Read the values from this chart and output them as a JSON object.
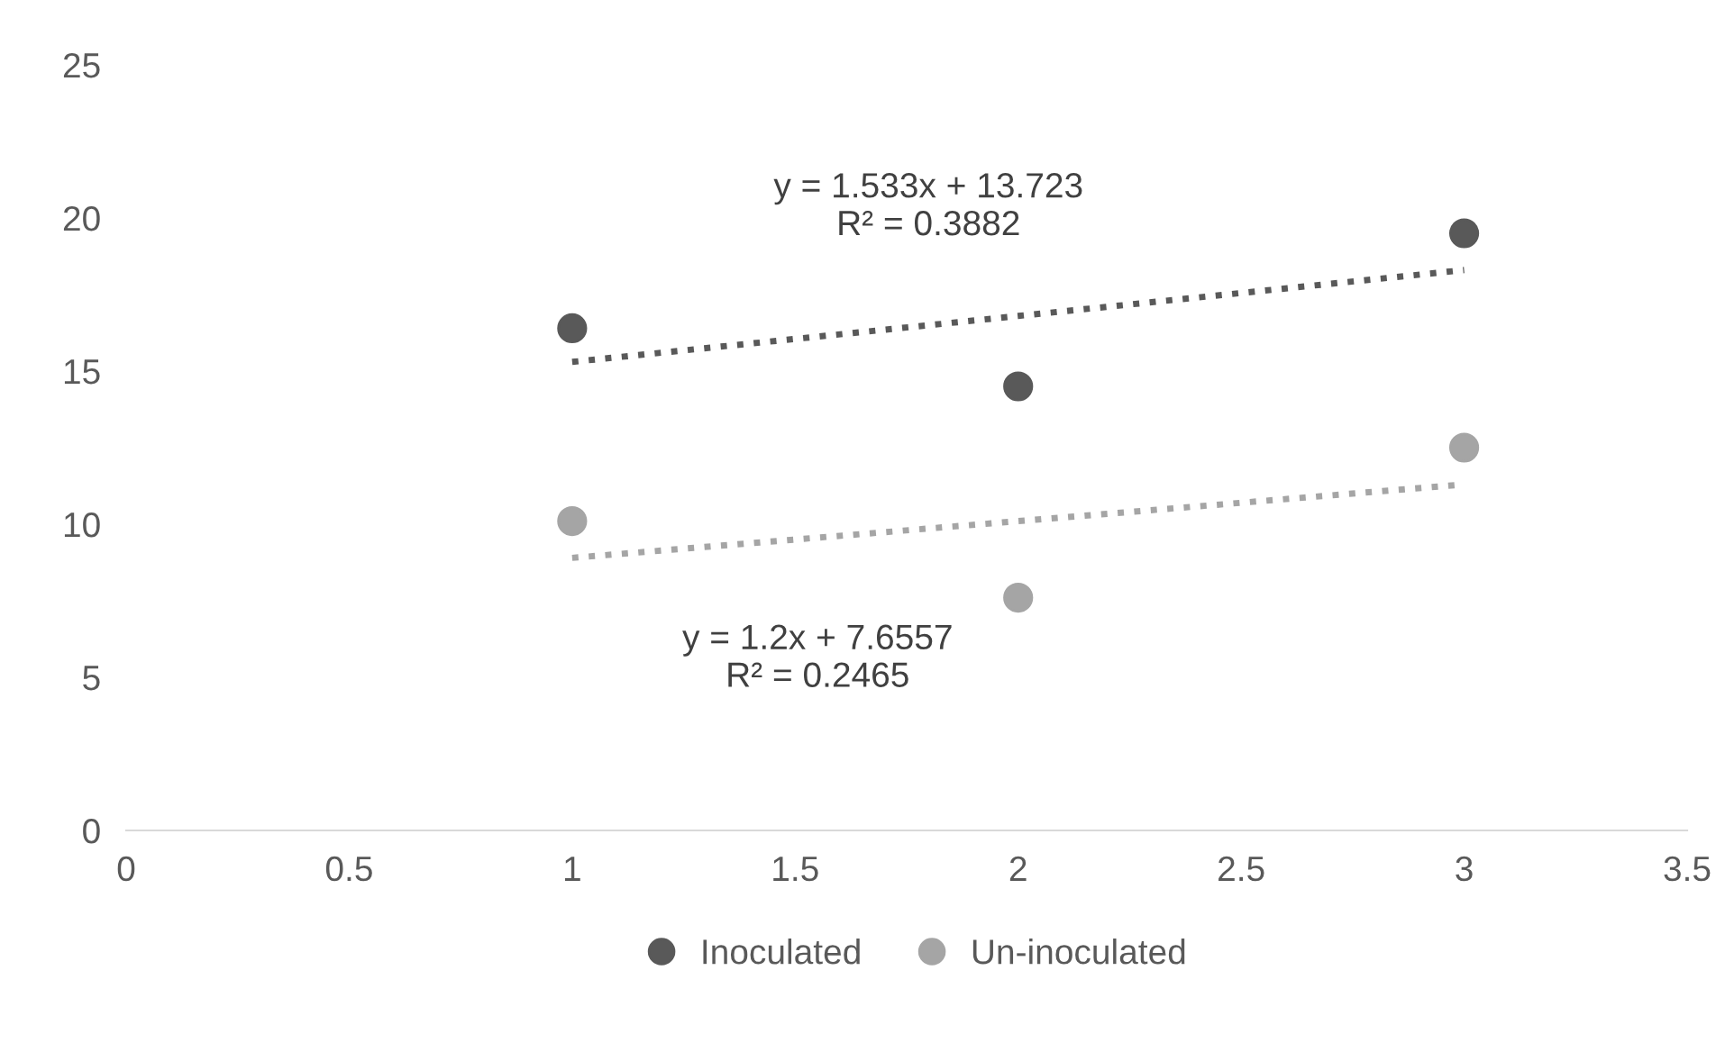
{
  "chart_data": {
    "type": "scatter",
    "x": [
      1,
      2,
      3
    ],
    "series": [
      {
        "name": "Inoculated",
        "color": "#595959",
        "values": [
          16.4,
          14.5,
          19.5
        ],
        "marker": "circle"
      },
      {
        "name": "Un-inoculated",
        "color": "#a5a5a5",
        "values": [
          10.1,
          7.6,
          12.5
        ],
        "marker": "circle"
      },
      {
        "type": "line",
        "color": "#595959",
        "values": [
          15.3,
          16.8,
          18.3
        ],
        "line_style": "dotted",
        "marker": "none"
      },
      {
        "type": "line",
        "color": "#a5a5a5",
        "values": [
          8.9,
          10.1,
          11.3
        ],
        "line_style": "dotted",
        "marker": "none"
      }
    ],
    "annotations": [
      "y = 1.533x + 13.723\nR² = 0.3882",
      "y = 1.2x + 7.6557\nR² = 0.2465"
    ],
    "xlim": [
      0,
      3.5
    ],
    "xticks": [
      0,
      0.5,
      1,
      1.5,
      2,
      2.5,
      3,
      3.5
    ],
    "ylim": [
      0,
      25
    ],
    "yticks": [
      0,
      5,
      10,
      15,
      20,
      25
    ],
    "grid": false,
    "legend": "bottom"
  }
}
